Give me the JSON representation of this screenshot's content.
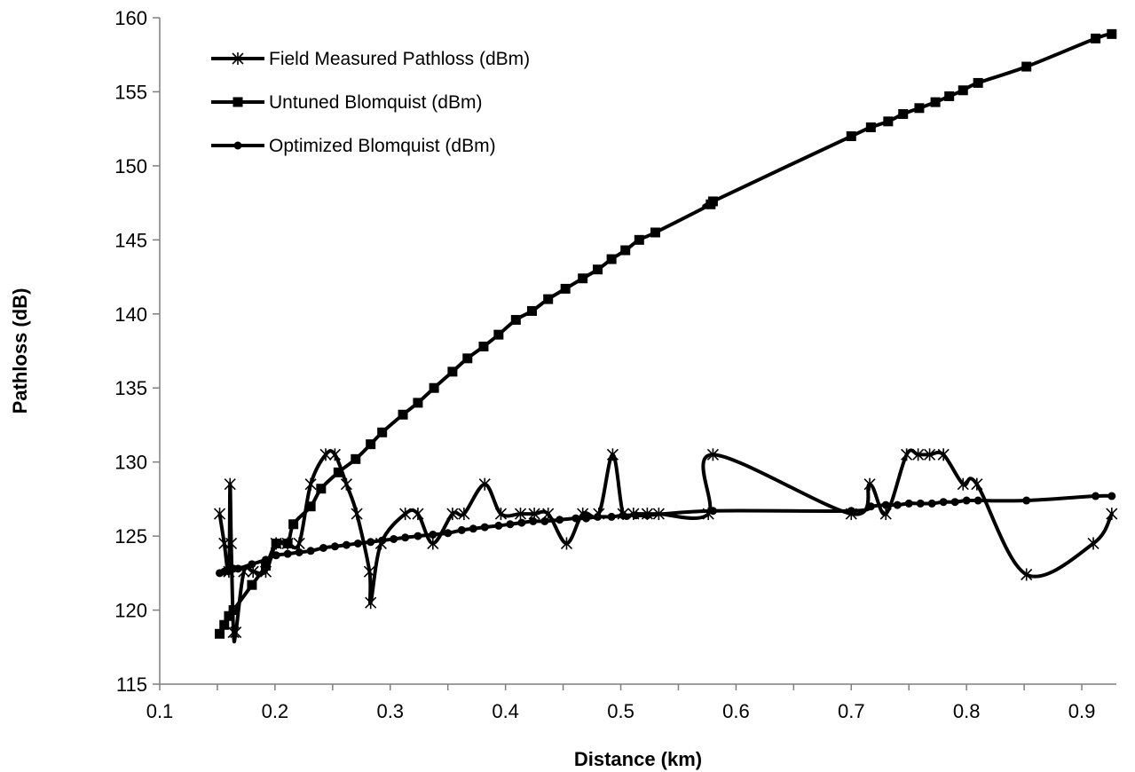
{
  "chart_data": {
    "type": "line",
    "title": "",
    "xlabel": "Distance (km)",
    "ylabel": "Pathloss (dB)",
    "xlim": [
      0.1,
      0.93
    ],
    "ylim": [
      115,
      160
    ],
    "xticks": [
      0.1,
      0.2,
      0.3,
      0.4,
      0.5,
      0.6,
      0.7,
      0.8,
      0.9
    ],
    "xtick_labels": [
      "0.1",
      "0.2",
      "0.3",
      "0.4",
      "0.5",
      "0.6",
      "0.7",
      "0.8",
      "0.9"
    ],
    "yticks": [
      115,
      120,
      125,
      130,
      135,
      140,
      145,
      150,
      155,
      160
    ],
    "ytick_labels": [
      "115",
      "120",
      "125",
      "130",
      "135",
      "140",
      "145",
      "150",
      "155",
      "160"
    ],
    "grid": false,
    "legend_position": "top-left",
    "series": [
      {
        "name": "Field Measured  Pathloss (dBm)",
        "marker": "star",
        "color": "#000000",
        "points": [
          [
            0.152,
            126.5
          ],
          [
            0.156,
            124.5
          ],
          [
            0.16,
            122.6
          ],
          [
            0.161,
            128.5
          ],
          [
            0.162,
            124.5
          ],
          [
            0.164,
            118.5
          ],
          [
            0.166,
            118.5
          ],
          [
            0.173,
            122.6
          ],
          [
            0.181,
            122.6
          ],
          [
            0.192,
            122.6
          ],
          [
            0.201,
            124.5
          ],
          [
            0.211,
            124.5
          ],
          [
            0.221,
            124.5
          ],
          [
            0.231,
            128.5
          ],
          [
            0.244,
            130.5
          ],
          [
            0.252,
            130.5
          ],
          [
            0.262,
            128.5
          ],
          [
            0.271,
            126.5
          ],
          [
            0.282,
            122.6
          ],
          [
            0.283,
            120.5
          ],
          [
            0.292,
            124.5
          ],
          [
            0.313,
            126.5
          ],
          [
            0.324,
            126.5
          ],
          [
            0.337,
            124.5
          ],
          [
            0.354,
            126.5
          ],
          [
            0.364,
            126.5
          ],
          [
            0.382,
            128.5
          ],
          [
            0.396,
            126.5
          ],
          [
            0.413,
            126.5
          ],
          [
            0.425,
            126.5
          ],
          [
            0.437,
            126.5
          ],
          [
            0.453,
            124.5
          ],
          [
            0.467,
            126.5
          ],
          [
            0.481,
            126.5
          ],
          [
            0.493,
            130.5
          ],
          [
            0.502,
            126.5
          ],
          [
            0.511,
            126.5
          ],
          [
            0.523,
            126.5
          ],
          [
            0.533,
            126.5
          ],
          [
            0.576,
            126.5
          ],
          [
            0.58,
            130.5
          ],
          [
            0.7,
            126.5
          ],
          [
            0.716,
            128.5
          ],
          [
            0.73,
            126.5
          ],
          [
            0.748,
            130.5
          ],
          [
            0.758,
            130.5
          ],
          [
            0.768,
            130.5
          ],
          [
            0.78,
            130.5
          ],
          [
            0.797,
            128.5
          ],
          [
            0.809,
            128.5
          ],
          [
            0.852,
            122.4
          ],
          [
            0.91,
            124.5
          ],
          [
            0.926,
            126.5
          ]
        ]
      },
      {
        "name": "Untuned Blomquist  (dBm)",
        "marker": "square",
        "color": "#000000",
        "points": [
          [
            0.152,
            118.4
          ],
          [
            0.156,
            119
          ],
          [
            0.16,
            119.6
          ],
          [
            0.164,
            120
          ],
          [
            0.18,
            121.7
          ],
          [
            0.192,
            123
          ],
          [
            0.201,
            124.5
          ],
          [
            0.211,
            124.5
          ],
          [
            0.216,
            125.8
          ],
          [
            0.231,
            127
          ],
          [
            0.24,
            128.2
          ],
          [
            0.255,
            129.3
          ],
          [
            0.27,
            130.2
          ],
          [
            0.283,
            131.2
          ],
          [
            0.293,
            132
          ],
          [
            0.311,
            133.2
          ],
          [
            0.324,
            134
          ],
          [
            0.338,
            135
          ],
          [
            0.354,
            136.1
          ],
          [
            0.367,
            137
          ],
          [
            0.381,
            137.8
          ],
          [
            0.394,
            138.6
          ],
          [
            0.409,
            139.6
          ],
          [
            0.423,
            140.2
          ],
          [
            0.437,
            141
          ],
          [
            0.452,
            141.7
          ],
          [
            0.467,
            142.4
          ],
          [
            0.48,
            143
          ],
          [
            0.492,
            143.7
          ],
          [
            0.504,
            144.3
          ],
          [
            0.516,
            145
          ],
          [
            0.53,
            145.5
          ],
          [
            0.578,
            147.4
          ],
          [
            0.58,
            147.6
          ],
          [
            0.7,
            152
          ],
          [
            0.717,
            152.6
          ],
          [
            0.732,
            153
          ],
          [
            0.745,
            153.5
          ],
          [
            0.759,
            153.9
          ],
          [
            0.773,
            154.3
          ],
          [
            0.785,
            154.7
          ],
          [
            0.797,
            155.1
          ],
          [
            0.81,
            155.6
          ],
          [
            0.852,
            156.7
          ],
          [
            0.912,
            158.6
          ],
          [
            0.926,
            158.9
          ]
        ]
      },
      {
        "name": "Optimized Blomquist  (dBm)",
        "marker": "circle",
        "color": "#000000",
        "points": [
          [
            0.152,
            122.5
          ],
          [
            0.156,
            122.6
          ],
          [
            0.16,
            122.7
          ],
          [
            0.164,
            122.8
          ],
          [
            0.168,
            122.8
          ],
          [
            0.18,
            123.1
          ],
          [
            0.192,
            123.4
          ],
          [
            0.201,
            123.7
          ],
          [
            0.211,
            123.8
          ],
          [
            0.221,
            123.9
          ],
          [
            0.231,
            124
          ],
          [
            0.242,
            124.2
          ],
          [
            0.252,
            124.3
          ],
          [
            0.262,
            124.4
          ],
          [
            0.272,
            124.5
          ],
          [
            0.283,
            124.6
          ],
          [
            0.293,
            124.7
          ],
          [
            0.303,
            124.8
          ],
          [
            0.313,
            124.9
          ],
          [
            0.324,
            125
          ],
          [
            0.337,
            125.1
          ],
          [
            0.35,
            125.2
          ],
          [
            0.362,
            125.4
          ],
          [
            0.372,
            125.5
          ],
          [
            0.382,
            125.6
          ],
          [
            0.394,
            125.7
          ],
          [
            0.404,
            125.8
          ],
          [
            0.414,
            125.9
          ],
          [
            0.424,
            126
          ],
          [
            0.434,
            126
          ],
          [
            0.447,
            126.1
          ],
          [
            0.461,
            126.2
          ],
          [
            0.47,
            126.2
          ],
          [
            0.48,
            126.3
          ],
          [
            0.492,
            126.3
          ],
          [
            0.502,
            126.4
          ],
          [
            0.513,
            126.4
          ],
          [
            0.523,
            126.4
          ],
          [
            0.58,
            126.7
          ],
          [
            0.7,
            126.7
          ],
          [
            0.717,
            127
          ],
          [
            0.73,
            127.1
          ],
          [
            0.74,
            127.1
          ],
          [
            0.75,
            127.2
          ],
          [
            0.76,
            127.2
          ],
          [
            0.77,
            127.2
          ],
          [
            0.78,
            127.3
          ],
          [
            0.79,
            127.3
          ],
          [
            0.8,
            127.4
          ],
          [
            0.81,
            127.4
          ],
          [
            0.852,
            127.4
          ],
          [
            0.912,
            127.7
          ],
          [
            0.926,
            127.7
          ]
        ]
      }
    ]
  }
}
